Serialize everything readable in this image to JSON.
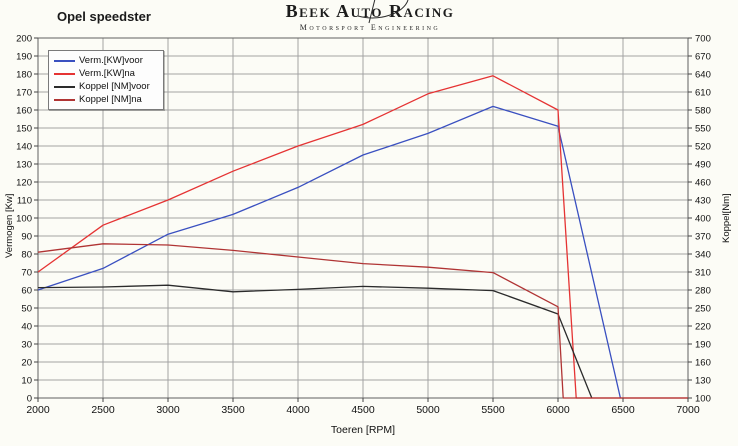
{
  "header": {
    "title": "Opel speedster",
    "logo_line1": "Beek Auto Racing",
    "logo_line2": "Motorsport Engineering"
  },
  "chart_data": {
    "type": "line",
    "title": "Opel speedster",
    "grid": true,
    "legend_position": "top-left",
    "x_axis": {
      "label": "Toeren [RPM]",
      "min": 2000,
      "max": 7000,
      "tick_step": 500,
      "ticks": [
        2000,
        2500,
        3000,
        3500,
        4000,
        4500,
        5000,
        5500,
        6000,
        6500,
        7000
      ]
    },
    "y_left": {
      "label": "Vermogen [Kw]",
      "min": 0,
      "max": 200,
      "tick_step": 10,
      "ticks": [
        0,
        10,
        20,
        30,
        40,
        50,
        60,
        70,
        80,
        90,
        100,
        110,
        120,
        130,
        140,
        150,
        160,
        170,
        180,
        190,
        200
      ]
    },
    "y_right": {
      "label": "Koppel[Nm]",
      "min": 100,
      "max": 700,
      "tick_step": 30,
      "ticks": [
        100,
        130,
        160,
        190,
        220,
        250,
        280,
        310,
        340,
        370,
        400,
        430,
        460,
        490,
        520,
        550,
        580,
        610,
        640,
        670,
        700
      ]
    },
    "series": [
      {
        "id": "verm-kw-voor",
        "name": "Verm.[KW]voor",
        "axis": "left",
        "color": "#3a50c0",
        "points": [
          [
            2000,
            60
          ],
          [
            2500,
            72
          ],
          [
            3000,
            91
          ],
          [
            3500,
            102
          ],
          [
            4000,
            117
          ],
          [
            4500,
            135
          ],
          [
            5000,
            147
          ],
          [
            5500,
            162
          ],
          [
            6000,
            151
          ],
          [
            6480,
            0
          ]
        ]
      },
      {
        "id": "verm-kw-na",
        "name": "Verm.[KW]na",
        "axis": "left",
        "color": "#e53333",
        "points": [
          [
            2000,
            70
          ],
          [
            2500,
            96
          ],
          [
            3000,
            110
          ],
          [
            3500,
            126
          ],
          [
            4000,
            140
          ],
          [
            4500,
            152
          ],
          [
            5000,
            169
          ],
          [
            5500,
            179
          ],
          [
            6000,
            160
          ],
          [
            6140,
            0
          ],
          [
            7000,
            0
          ]
        ]
      },
      {
        "id": "koppel-nm-voor",
        "name": "Koppel [NM]voor",
        "axis": "right",
        "color": "#2b2b2b",
        "points": [
          [
            2000,
            284
          ],
          [
            2500,
            285
          ],
          [
            3000,
            288
          ],
          [
            3500,
            277
          ],
          [
            4000,
            281
          ],
          [
            4500,
            286
          ],
          [
            5000,
            283
          ],
          [
            5500,
            279
          ],
          [
            6000,
            240
          ],
          [
            6260,
            100
          ]
        ]
      },
      {
        "id": "koppel-nm-na",
        "name": "Koppel [NM]na",
        "axis": "right",
        "color": "#b03434",
        "points": [
          [
            2000,
            343
          ],
          [
            2500,
            357
          ],
          [
            3000,
            355
          ],
          [
            3500,
            346
          ],
          [
            4000,
            335
          ],
          [
            4500,
            324
          ],
          [
            5000,
            318
          ],
          [
            5500,
            309
          ],
          [
            6000,
            252
          ],
          [
            6040,
            100
          ],
          [
            7000,
            100
          ]
        ]
      }
    ]
  }
}
